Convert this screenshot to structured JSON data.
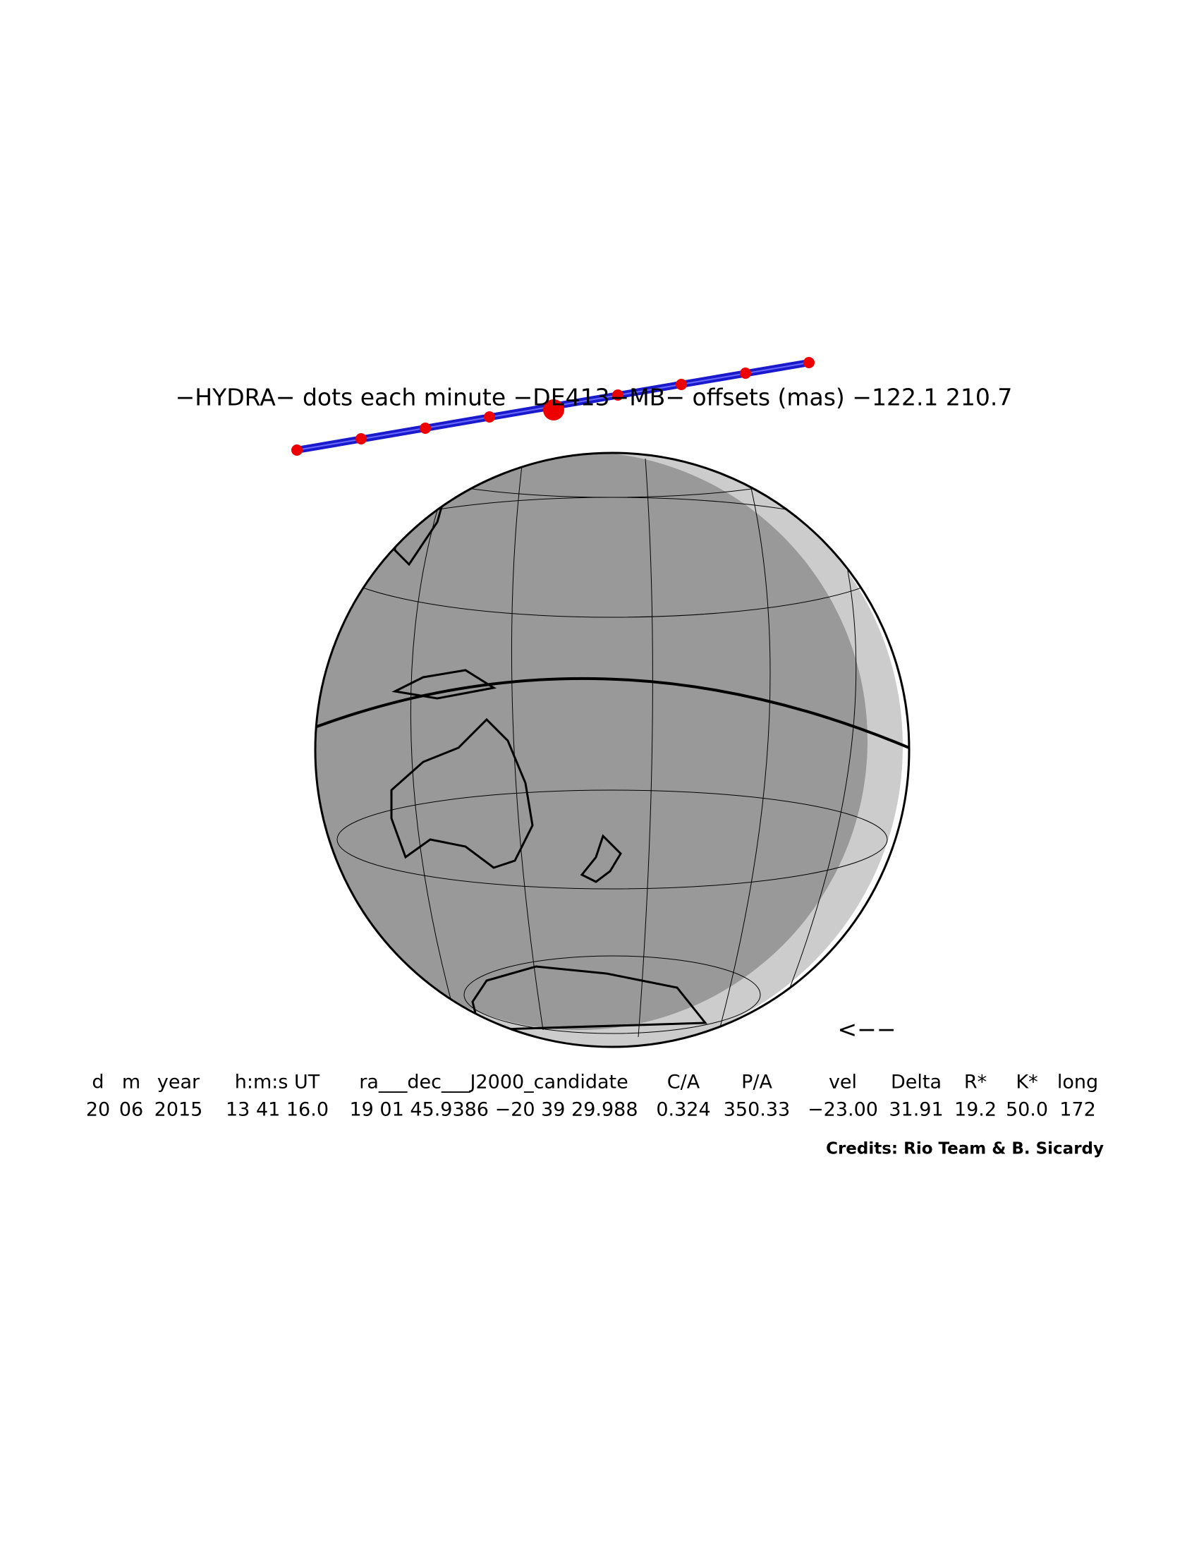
{
  "header": {
    "title": "−HYDRA−  dots each minute  −DE413−MB−  offsets (mas)  −122.1   210.7"
  },
  "arrow": "<−−",
  "table": {
    "headers": [
      "d",
      "m",
      "year",
      "h:m:s UT",
      "ra___dec___J2000_candidate",
      "C/A",
      "P/A",
      "vel",
      "Delta",
      "R*",
      "K*",
      "long"
    ],
    "rows": [
      [
        "20",
        "06",
        "2015",
        "13 41 16.0",
        "19 01 45.9386 −20 39 29.988",
        "0.324",
        "350.33",
        "−23.00",
        "31.91",
        "19.2",
        "50.0",
        "172"
      ]
    ]
  },
  "credits": "Credits: Rio Team & B. Sicardy"
}
